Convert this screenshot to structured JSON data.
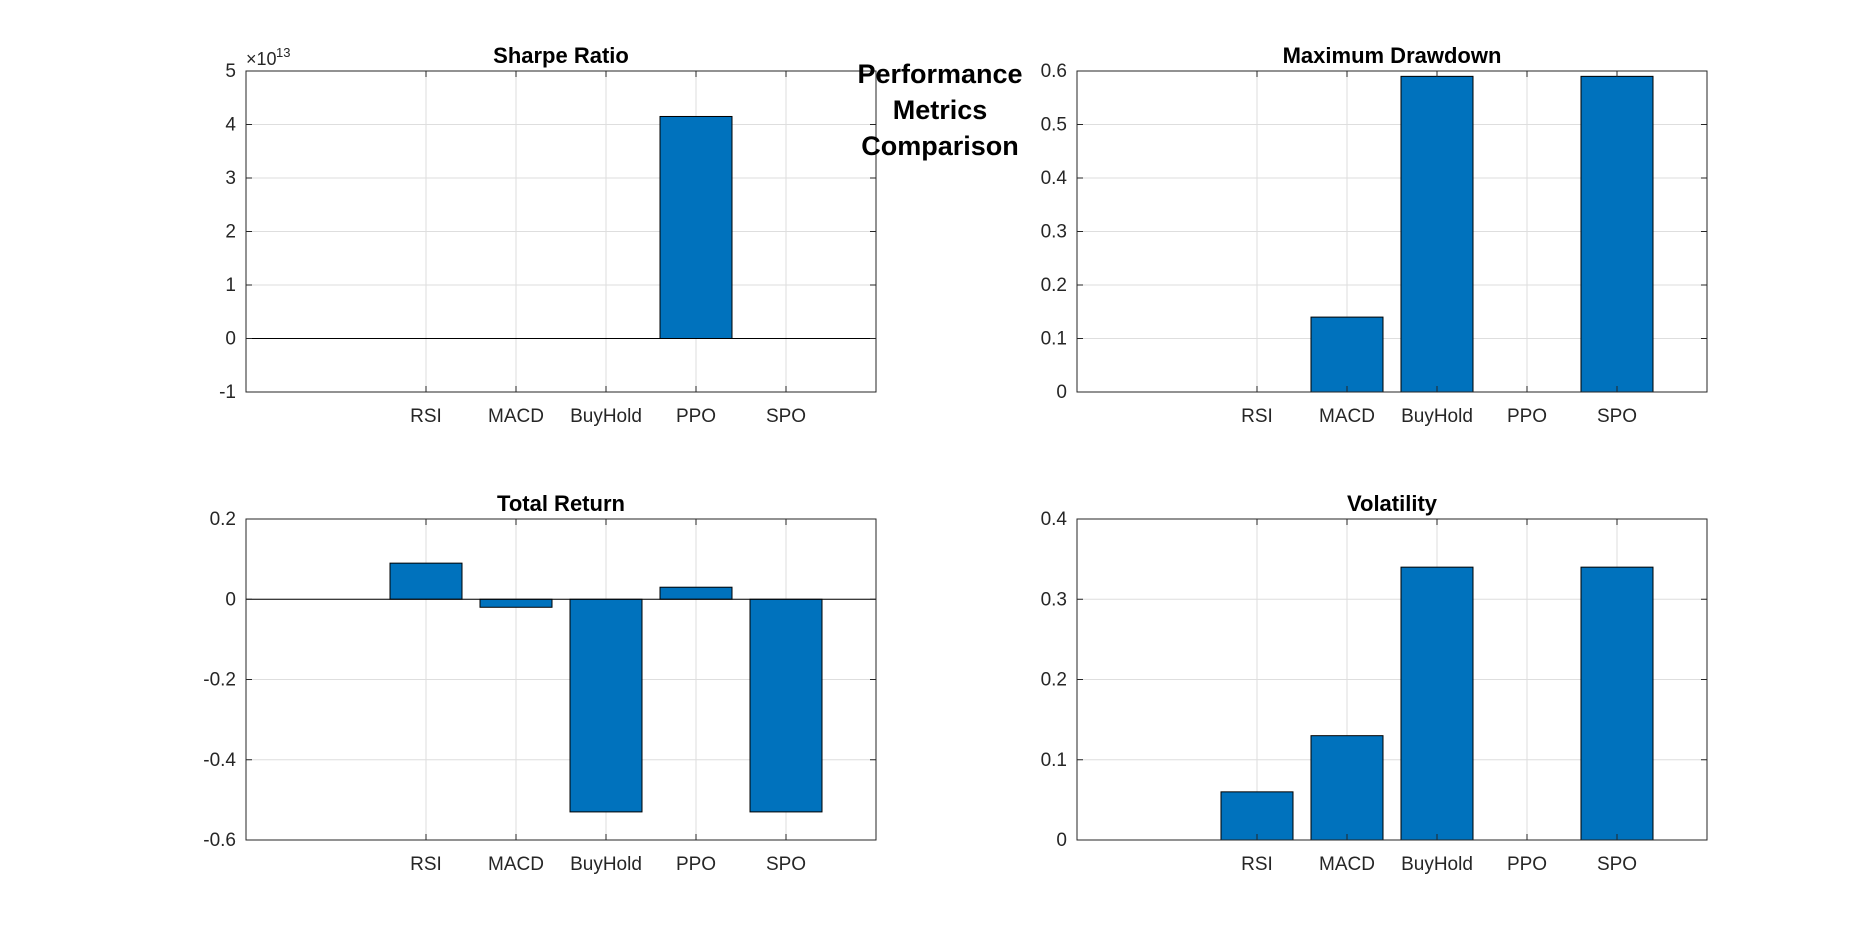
{
  "figure_title": [
    "Performance",
    "Metrics",
    "Comparison"
  ],
  "colors": {
    "bar": "#0072BD",
    "axis": "#262626",
    "grid": "#dedede"
  },
  "chart_data": [
    {
      "type": "bar",
      "title": "Sharpe Ratio",
      "categories": [
        "RSI",
        "MACD",
        "BuyHold",
        "PPO",
        "SPO"
      ],
      "values": [
        0,
        0,
        0,
        41500000000000.0,
        0
      ],
      "ylim": [
        -10000000000000.0,
        50000000000000.0
      ],
      "yticks": [
        -1,
        0,
        1,
        2,
        3,
        4,
        5
      ],
      "ytick_labels": [
        "-1",
        "0",
        "1",
        "2",
        "3",
        "4",
        "5"
      ],
      "y_multiplier_base": "×10",
      "y_multiplier_exp": "13",
      "grid": true
    },
    {
      "type": "bar",
      "title": "Maximum Drawdown",
      "categories": [
        "RSI",
        "MACD",
        "BuyHold",
        "PPO",
        "SPO"
      ],
      "values": [
        0,
        0.14,
        0.59,
        0,
        0.59
      ],
      "ylim": [
        0,
        0.6
      ],
      "yticks": [
        0,
        0.1,
        0.2,
        0.3,
        0.4,
        0.5,
        0.6
      ],
      "ytick_labels": [
        "0",
        "0.1",
        "0.2",
        "0.3",
        "0.4",
        "0.5",
        "0.6"
      ],
      "grid": true
    },
    {
      "type": "bar",
      "title": "Total Return",
      "categories": [
        "RSI",
        "MACD",
        "BuyHold",
        "PPO",
        "SPO"
      ],
      "values": [
        0.09,
        -0.02,
        -0.53,
        0.03,
        -0.53
      ],
      "ylim": [
        -0.6,
        0.2
      ],
      "yticks": [
        -0.6,
        -0.4,
        -0.2,
        0,
        0.2
      ],
      "ytick_labels": [
        "-0.6",
        "-0.4",
        "-0.2",
        "0",
        "0.2"
      ],
      "grid": true
    },
    {
      "type": "bar",
      "title": "Volatility",
      "categories": [
        "RSI",
        "MACD",
        "BuyHold",
        "PPO",
        "SPO"
      ],
      "values": [
        0.06,
        0.13,
        0.34,
        0,
        0.34
      ],
      "ylim": [
        0,
        0.4
      ],
      "yticks": [
        0,
        0.1,
        0.2,
        0.3,
        0.4
      ],
      "ytick_labels": [
        "0",
        "0.1",
        "0.2",
        "0.3",
        "0.4"
      ],
      "grid": true
    }
  ]
}
